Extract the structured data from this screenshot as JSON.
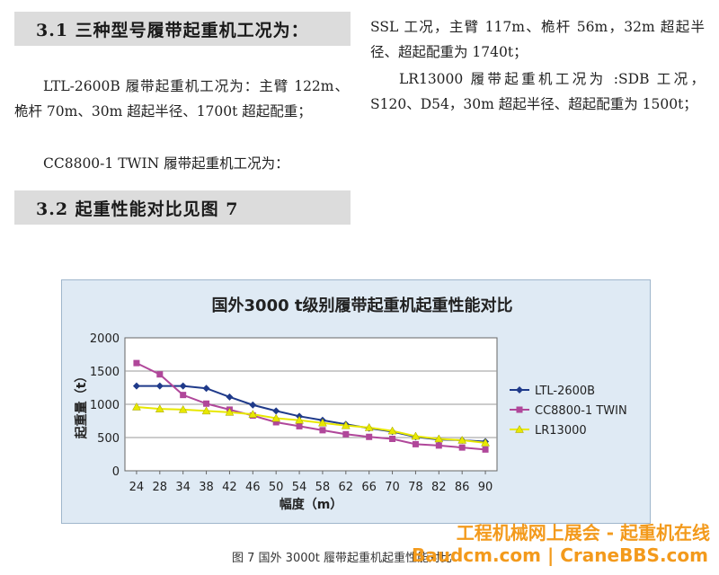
{
  "section_3_1": {
    "heading": "3.1 三种型号履带起重机工况为：",
    "para1": "LTL-2600B 履带起重机工况为：主臂 122m、桅杆 70m、30m 超起半径、1700t 超起配重；",
    "para2": "CC8800-1 TWIN 履带起重机工况为："
  },
  "section_3_2": {
    "heading": "3.2 起重性能对比见图 7"
  },
  "right_column": {
    "para1": "SSL 工况，主臂 117m、桅杆 56m，32m 超起半径、超起配重为 1740t；",
    "para2": "LR13000 履带起重机工况为 :SDB 工况，S120、D54，30m 超起半径、超起配重为 1500t；"
  },
  "figure": {
    "caption": "图 7   国外 3000t 履带起重机起重性能对比"
  },
  "watermark": {
    "line1": "工程机械网上展会 - 起重机在线",
    "line2": "Baudcm.com | CraneBBS.com"
  },
  "chart_data": {
    "type": "line",
    "title": "国外3000 t级别履带起重机起重性能对比",
    "xlabel": "幅度（m）",
    "ylabel": "起重量（t）",
    "categories": [
      "24",
      "28",
      "34",
      "38",
      "42",
      "46",
      "50",
      "54",
      "58",
      "62",
      "66",
      "70",
      "78",
      "82",
      "86",
      "90"
    ],
    "ylim": [
      0,
      2000
    ],
    "yticks": [
      "0",
      "500",
      "1000",
      "1500",
      "2000"
    ],
    "grid": "horizontal",
    "legend": "right",
    "series": [
      {
        "name": "LTL-2600B",
        "color": "#1f3a8a",
        "marker": "diamond",
        "values": [
          1275,
          1275,
          1275,
          1240,
          1110,
          990,
          900,
          820,
          760,
          700,
          640,
          590,
          510,
          470,
          460,
          440
        ]
      },
      {
        "name": "CC8800-1 TWIN",
        "color": "#b0479a",
        "marker": "square",
        "values": [
          1620,
          1450,
          1140,
          1010,
          920,
          830,
          730,
          670,
          610,
          550,
          510,
          480,
          400,
          380,
          350,
          320
        ]
      },
      {
        "name": "LR13000",
        "color": "#e8e800",
        "marker": "triangle",
        "values": [
          960,
          930,
          920,
          900,
          880,
          850,
          790,
          760,
          720,
          680,
          650,
          600,
          520,
          480,
          460,
          420
        ]
      }
    ]
  }
}
